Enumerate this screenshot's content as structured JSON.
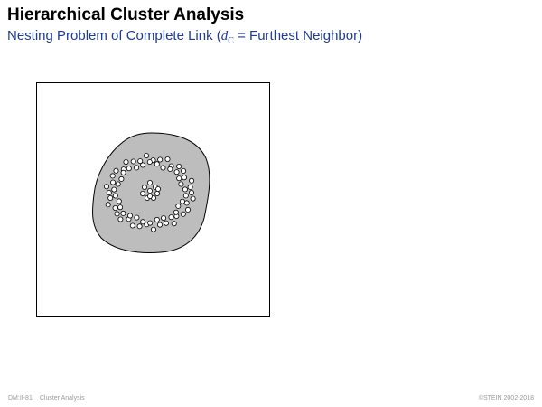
{
  "header": {
    "title": "Hierarchical Cluster Analysis",
    "subtitle_prefix": "Nesting Problem of Complete Link (",
    "subtitle_var": "d",
    "subtitle_sub": "C",
    "subtitle_suffix": " = Furthest Neighbor)"
  },
  "footer": {
    "slide_number": "DM:II-81",
    "section": "Cluster Analysis",
    "copyright": "©STEIN 2002-2018"
  },
  "colors": {
    "title": "#000000",
    "subtitle": "#1f3a93",
    "cluster_fill": "#bdbdbd",
    "point_fill": "#ffffff",
    "stroke": "#000000"
  }
}
